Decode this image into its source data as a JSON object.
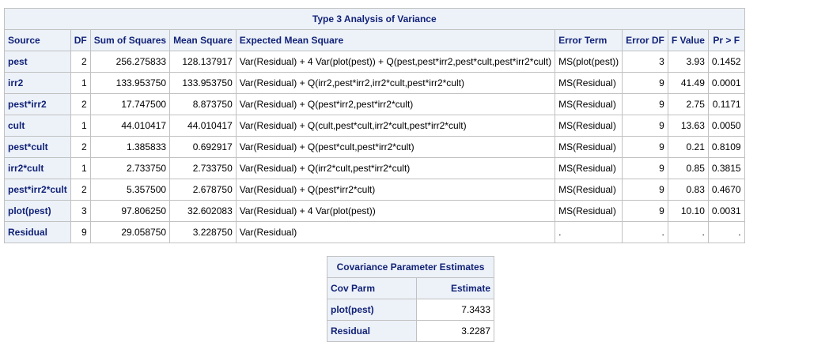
{
  "anova": {
    "title": "Type 3 Analysis of Variance",
    "columns": [
      "Source",
      "DF",
      "Sum of Squares",
      "Mean Square",
      "Expected Mean Square",
      "Error Term",
      "Error DF",
      "F Value",
      "Pr > F"
    ],
    "rows": [
      {
        "source": "pest",
        "df": "2",
        "ss": "256.275833",
        "ms": "128.137917",
        "ems": "Var(Residual) + 4 Var(plot(pest)) + Q(pest,pest*irr2,pest*cult,pest*irr2*cult)",
        "error_term": "MS(plot(pest))",
        "error_df": "3",
        "f_value": "3.93",
        "pr_f": "0.1452"
      },
      {
        "source": "irr2",
        "df": "1",
        "ss": "133.953750",
        "ms": "133.953750",
        "ems": "Var(Residual) + Q(irr2,pest*irr2,irr2*cult,pest*irr2*cult)",
        "error_term": "MS(Residual)",
        "error_df": "9",
        "f_value": "41.49",
        "pr_f": "0.0001"
      },
      {
        "source": "pest*irr2",
        "df": "2",
        "ss": "17.747500",
        "ms": "8.873750",
        "ems": "Var(Residual) + Q(pest*irr2,pest*irr2*cult)",
        "error_term": "MS(Residual)",
        "error_df": "9",
        "f_value": "2.75",
        "pr_f": "0.1171"
      },
      {
        "source": "cult",
        "df": "1",
        "ss": "44.010417",
        "ms": "44.010417",
        "ems": "Var(Residual) + Q(cult,pest*cult,irr2*cult,pest*irr2*cult)",
        "error_term": "MS(Residual)",
        "error_df": "9",
        "f_value": "13.63",
        "pr_f": "0.0050"
      },
      {
        "source": "pest*cult",
        "df": "2",
        "ss": "1.385833",
        "ms": "0.692917",
        "ems": "Var(Residual) + Q(pest*cult,pest*irr2*cult)",
        "error_term": "MS(Residual)",
        "error_df": "9",
        "f_value": "0.21",
        "pr_f": "0.8109"
      },
      {
        "source": "irr2*cult",
        "df": "1",
        "ss": "2.733750",
        "ms": "2.733750",
        "ems": "Var(Residual) + Q(irr2*cult,pest*irr2*cult)",
        "error_term": "MS(Residual)",
        "error_df": "9",
        "f_value": "0.85",
        "pr_f": "0.3815"
      },
      {
        "source": "pest*irr2*cult",
        "df": "2",
        "ss": "5.357500",
        "ms": "2.678750",
        "ems": "Var(Residual) + Q(pest*irr2*cult)",
        "error_term": "MS(Residual)",
        "error_df": "9",
        "f_value": "0.83",
        "pr_f": "0.4670"
      },
      {
        "source": "plot(pest)",
        "df": "3",
        "ss": "97.806250",
        "ms": "32.602083",
        "ems": "Var(Residual) + 4 Var(plot(pest))",
        "error_term": "MS(Residual)",
        "error_df": "9",
        "f_value": "10.10",
        "pr_f": "0.0031"
      },
      {
        "source": "Residual",
        "df": "9",
        "ss": "29.058750",
        "ms": "3.228750",
        "ems": "Var(Residual)",
        "error_term": ".",
        "error_df": ".",
        "f_value": ".",
        "pr_f": "."
      }
    ]
  },
  "cov": {
    "title": "Covariance Parameter Estimates",
    "columns": [
      "Cov Parm",
      "Estimate"
    ],
    "rows": [
      {
        "parm": "plot(pest)",
        "estimate": "7.3433"
      },
      {
        "parm": "Residual",
        "estimate": "3.2287"
      }
    ]
  },
  "colors": {
    "header_bg": "#edf2f9",
    "header_text": "#112277",
    "border": "#c1c1c1"
  }
}
